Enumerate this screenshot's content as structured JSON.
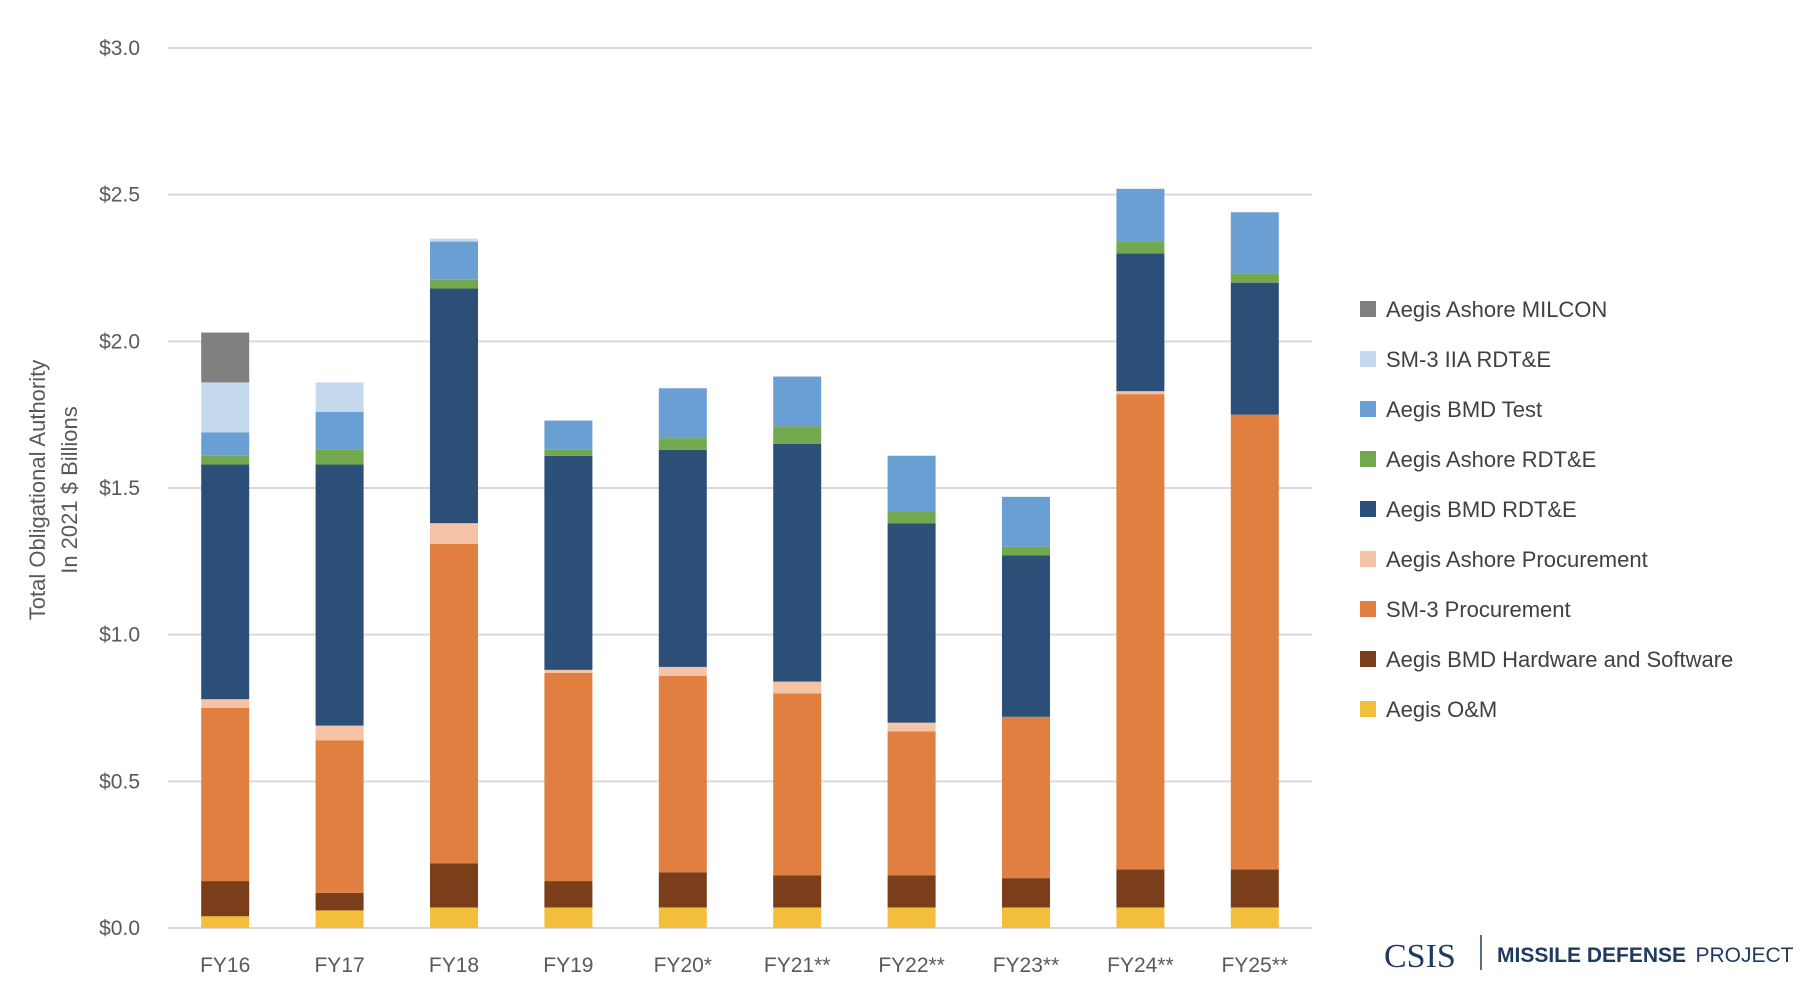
{
  "chart_data": {
    "type": "bar",
    "stacked": true,
    "title": "",
    "xlabel": "",
    "ylabel_lines": [
      "Total Obligational Authority",
      "In 2021 $ Billions"
    ],
    "ylim": [
      0,
      3.0
    ],
    "yticks": [
      0.0,
      0.5,
      1.0,
      1.5,
      2.0,
      2.5,
      3.0
    ],
    "ytick_labels": [
      "$0.0",
      "$0.5",
      "$1.0",
      "$1.5",
      "$2.0",
      "$2.5",
      "$3.0"
    ],
    "grid": true,
    "legend_position": "right",
    "categories": [
      "FY16",
      "FY17",
      "FY18",
      "FY19",
      "FY20*",
      "FY21**",
      "FY22**",
      "FY23**",
      "FY24**",
      "FY25**"
    ],
    "series": [
      {
        "name": "Aegis O&M",
        "color": "#F2BE3C",
        "values": [
          0.04,
          0.06,
          0.07,
          0.07,
          0.07,
          0.07,
          0.07,
          0.07,
          0.07,
          0.07
        ]
      },
      {
        "name": "Aegis BMD Hardware and Software",
        "color": "#7A3E1B",
        "values": [
          0.12,
          0.06,
          0.15,
          0.09,
          0.12,
          0.11,
          0.11,
          0.1,
          0.13,
          0.13
        ]
      },
      {
        "name": "SM-3 Procurement",
        "color": "#E07F3F",
        "values": [
          0.59,
          0.52,
          1.09,
          0.71,
          0.67,
          0.62,
          0.49,
          0.55,
          1.62,
          1.55
        ]
      },
      {
        "name": "Aegis Ashore Procurement",
        "color": "#F5C3A6",
        "values": [
          0.03,
          0.05,
          0.07,
          0.01,
          0.03,
          0.04,
          0.03,
          0.0,
          0.01,
          0.0
        ]
      },
      {
        "name": "Aegis BMD RDT&E",
        "color": "#2B4F77",
        "values": [
          0.8,
          0.89,
          0.8,
          0.73,
          0.74,
          0.81,
          0.68,
          0.55,
          0.47,
          0.45
        ]
      },
      {
        "name": "Aegis Ashore RDT&E",
        "color": "#72A84E",
        "values": [
          0.03,
          0.05,
          0.03,
          0.02,
          0.04,
          0.06,
          0.04,
          0.03,
          0.04,
          0.03
        ]
      },
      {
        "name": "Aegis BMD Test",
        "color": "#6A9FD4",
        "values": [
          0.08,
          0.13,
          0.13,
          0.1,
          0.17,
          0.17,
          0.19,
          0.17,
          0.18,
          0.21
        ]
      },
      {
        "name": "SM-3 IIA RDT&E",
        "color": "#C5D9EE",
        "values": [
          0.17,
          0.1,
          0.01,
          0.0,
          0.0,
          0.0,
          0.0,
          0.0,
          0.0,
          0.0
        ]
      },
      {
        "name": "Aegis Ashore MILCON",
        "color": "#808080",
        "values": [
          0.17,
          0.0,
          0.0,
          0.0,
          0.0,
          0.0,
          0.0,
          0.0,
          0.0,
          0.0
        ]
      }
    ],
    "legend_order": [
      "Aegis Ashore MILCON",
      "SM-3 IIA RDT&E",
      "Aegis BMD Test",
      "Aegis Ashore RDT&E",
      "Aegis BMD RDT&E",
      "Aegis Ashore Procurement",
      "SM-3 Procurement",
      "Aegis BMD Hardware and Software",
      "Aegis O&M"
    ],
    "colors": {
      "grid": "#D9D9D9",
      "axis_text": "#595959",
      "logo": "#1F3A5F"
    }
  },
  "logo": {
    "org": "CSIS",
    "project_bold": "MISSILE DEFENSE",
    "project_rest": "PROJECT"
  }
}
